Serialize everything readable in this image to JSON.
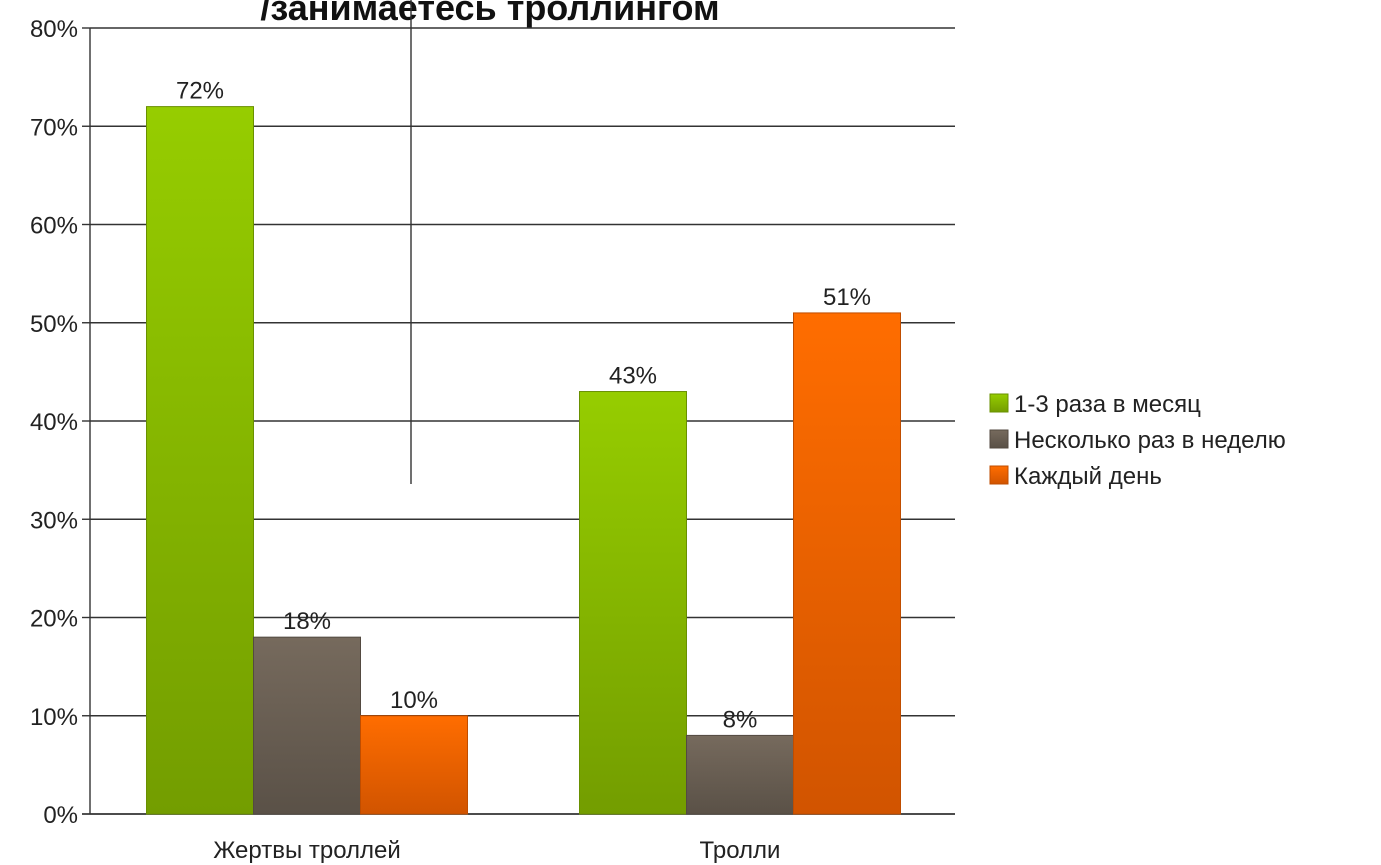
{
  "chart_data": {
    "type": "bar",
    "title": "/занимаетесь троллингом",
    "xlabel": "",
    "ylabel": "",
    "categories": [
      "Жертвы троллей",
      "Тролли"
    ],
    "series": [
      {
        "name": "1-3 раза в месяц",
        "values": [
          72,
          43
        ],
        "labels": [
          "72%",
          "43%"
        ],
        "color": "#8cc000"
      },
      {
        "name": "Несколько раз в неделю",
        "values": [
          18,
          8
        ],
        "labels": [
          "18%",
          "8%"
        ],
        "color": "#6e6357"
      },
      {
        "name": "Каждый день",
        "values": [
          10,
          51
        ],
        "labels": [
          "10%",
          "51%"
        ],
        "color": "#ff6600"
      }
    ],
    "ylim": [
      0,
      80
    ],
    "y_ticks": [
      "0%",
      "10%",
      "20%",
      "30%",
      "40%",
      "50%",
      "60%",
      "70%",
      "80%"
    ],
    "grid": true,
    "legend_position": "right"
  }
}
